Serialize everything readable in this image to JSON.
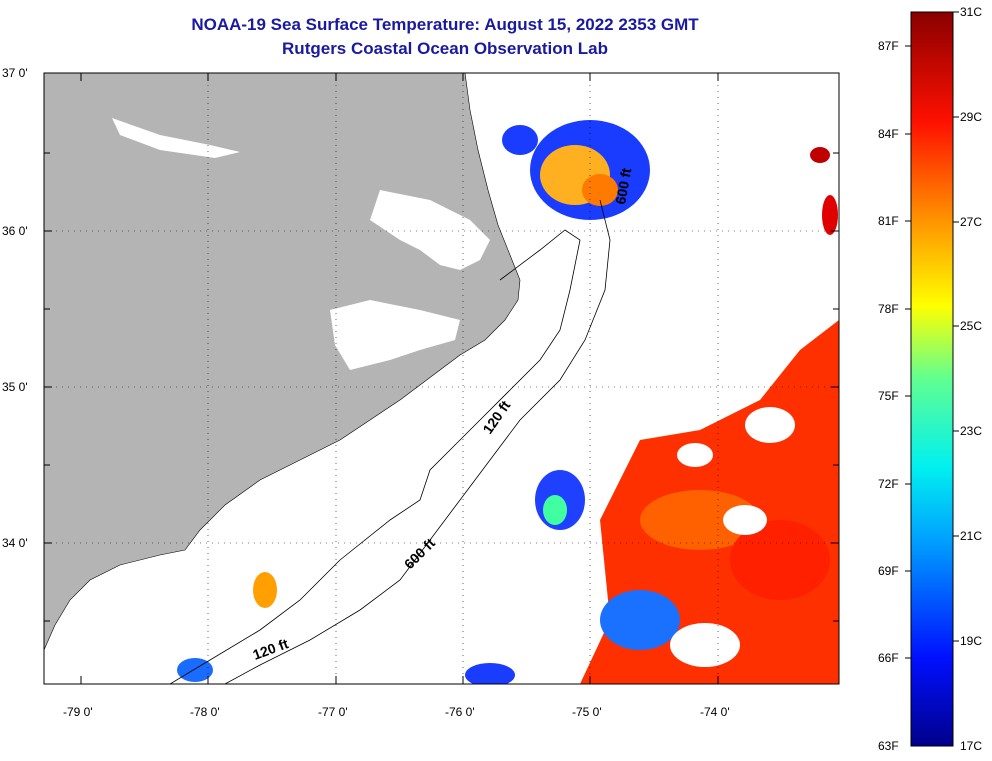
{
  "title": "NOAA-19 Sea Surface Temperature:  August 15, 2022 2353 GMT",
  "subtitle": "Rutgers Coastal Ocean Observation Lab",
  "lat_labels": [
    "37 0'",
    "36 0'",
    "35 0'",
    "34 0'"
  ],
  "lon_labels": [
    "-79 0'",
    "-78 0'",
    "-77 0'",
    "-76 0'",
    "-75 0'",
    "-74 0'"
  ],
  "contours": [
    "600 ft",
    "120 ft",
    "600 ft",
    "120 ft"
  ],
  "colorbar": {
    "f_labels": [
      "87F",
      "84F",
      "81F",
      "78F",
      "75F",
      "72F",
      "69F",
      "66F",
      "63F"
    ],
    "c_labels": [
      "31C",
      "29C",
      "27C",
      "25C",
      "23C",
      "21C",
      "19C",
      "17C"
    ],
    "range_c": [
      17,
      31
    ]
  },
  "colors": {
    "land": "#b4b4b4",
    "title": "#1a1aa0",
    "ocean_nodata": "#ffffff"
  }
}
